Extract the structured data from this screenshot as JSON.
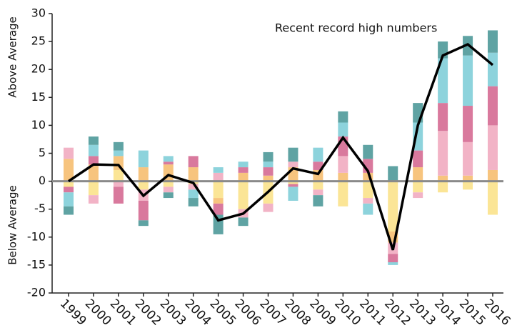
{
  "chart_data": {
    "type": "bar",
    "annotation": "Recent record high numbers",
    "ylabel_top": "Above Average",
    "ylabel_bottom": "Below Average",
    "categories": [
      "1999",
      "2000",
      "2001",
      "2002",
      "2003",
      "2004",
      "2005",
      "2006",
      "2007",
      "2008",
      "2009",
      "2010",
      "2011",
      "2012",
      "2013",
      "2014",
      "2015",
      "2016"
    ],
    "ylim": [
      -20,
      30
    ],
    "yticks": [
      -20,
      -15,
      -10,
      -5,
      0,
      5,
      10,
      15,
      20,
      25,
      30
    ],
    "series": [
      {
        "color": "#fbe596",
        "values": [
          -1,
          -2.5,
          2,
          -1.5,
          -1,
          -0.5,
          -3,
          -5,
          -4,
          -0.5,
          -1.5,
          -4.5,
          -3,
          -9,
          -2,
          -2,
          -1.5,
          -6
        ]
      },
      {
        "color": "#f7c47e",
        "values": [
          4,
          3,
          2.5,
          2.5,
          3,
          2.5,
          -1,
          1.5,
          1,
          2.5,
          2,
          1.5,
          1.5,
          -2,
          2.5,
          1,
          1,
          2
        ]
      },
      {
        "color": "#f2b3c6",
        "values": [
          2,
          -1.5,
          -1,
          -2,
          -1,
          -1,
          1.5,
          -1.5,
          -1.5,
          1,
          -1,
          3,
          -1,
          -2,
          -1,
          8,
          6,
          8
        ]
      },
      {
        "color": "#d9799d",
        "values": [
          -1,
          1.5,
          -3,
          -3.5,
          0.5,
          2,
          -2,
          1,
          1.5,
          -0.5,
          1.5,
          3.5,
          2.5,
          -1.5,
          3,
          5,
          6.5,
          7
        ]
      },
      {
        "color": "#8dd3dc",
        "values": [
          -2.5,
          2,
          1,
          3,
          1,
          -1.5,
          1,
          1,
          1,
          -2.5,
          2.5,
          2.5,
          -2,
          -0.5,
          5,
          8,
          9,
          6
        ]
      },
      {
        "color": "#5fa3a3",
        "values": [
          -1.5,
          1.5,
          1.5,
          -1,
          -1,
          -1.5,
          -3.5,
          -1.5,
          1.7,
          2.5,
          -2,
          2,
          2.5,
          2.7,
          3.5,
          3,
          3.5,
          4
        ]
      },
      {
        "type": "line",
        "color": "#000000",
        "values": [
          0,
          3,
          2.9,
          -2.6,
          1.1,
          -0.3,
          -7,
          -5.8,
          -1.9,
          2.3,
          1.3,
          7.8,
          1.8,
          -12.3,
          10,
          22.5,
          24.5,
          20.8
        ]
      }
    ]
  }
}
